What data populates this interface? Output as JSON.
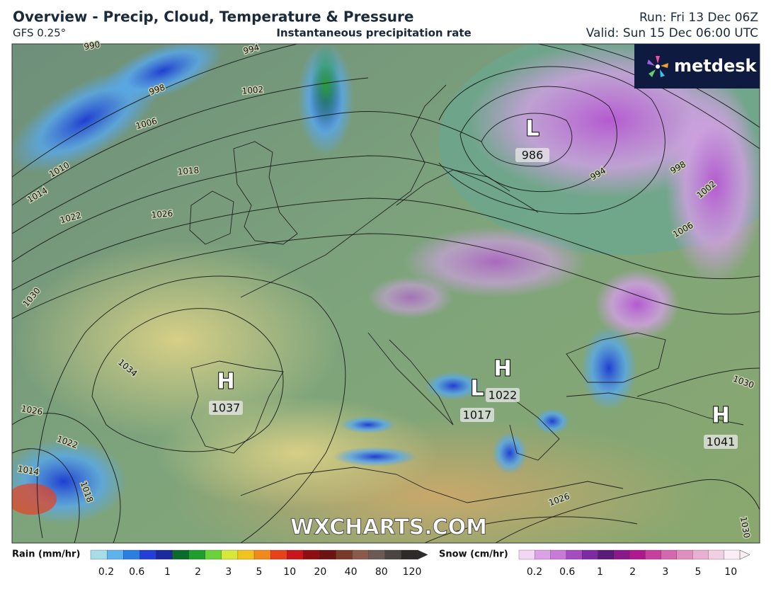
{
  "header": {
    "title": "Overview - Precip, Cloud, Temperature & Pressure",
    "model": "GFS 0.25°",
    "subtitle": "Instantaneous precipitation rate",
    "run": "Run: Fri 13 Dec 06Z",
    "valid": "Valid: Sun 15 Dec 06:00 UTC"
  },
  "logo": "metdesk",
  "watermark": "WXCHARTS.COM",
  "pressure_centers": [
    {
      "symbol": "H",
      "value": 1037
    },
    {
      "symbol": "H",
      "value": 1022
    },
    {
      "symbol": "L",
      "value": 1017
    },
    {
      "symbol": "L",
      "value": 986
    },
    {
      "symbol": "H",
      "value": 1041
    }
  ],
  "isobar_labels": [
    990,
    994,
    998,
    1002,
    1006,
    1010,
    1014,
    1018,
    1022,
    1026,
    1030,
    1034,
    1026,
    1022,
    1014,
    1018,
    1026,
    1030,
    994,
    998,
    1002,
    1006,
    1030
  ],
  "rain_legend": {
    "label": "Rain (mm/hr)",
    "ticks": [
      0.2,
      0.6,
      1,
      2,
      3,
      5,
      10,
      20,
      40,
      80,
      120
    ],
    "colors": [
      "#a8dde8",
      "#5fb3ec",
      "#2a7fe0",
      "#2240d8",
      "#1a2a9c",
      "#0a6b2a",
      "#1e9e2e",
      "#6bd23a",
      "#d6e83a",
      "#f2c21f",
      "#f08a1c",
      "#e8421c",
      "#c8161c",
      "#8e0e12",
      "#6a1414",
      "#7a3a2a",
      "#8a5a4a",
      "#6a5a52",
      "#4a4444",
      "#2e2a2a"
    ]
  },
  "snow_legend": {
    "label": "Snow (cm/hr)",
    "ticks": [
      0.2,
      0.6,
      1,
      2,
      3,
      5,
      10
    ],
    "colors": [
      "#f2d6f4",
      "#dca2e8",
      "#c77ad8",
      "#a54cc0",
      "#7e2aa0",
      "#5a1a78",
      "#8a1a8a",
      "#b01890",
      "#c8409e",
      "#d468ae",
      "#e08ec0",
      "#eab0d2",
      "#f2d0e4",
      "#faeef4"
    ]
  }
}
